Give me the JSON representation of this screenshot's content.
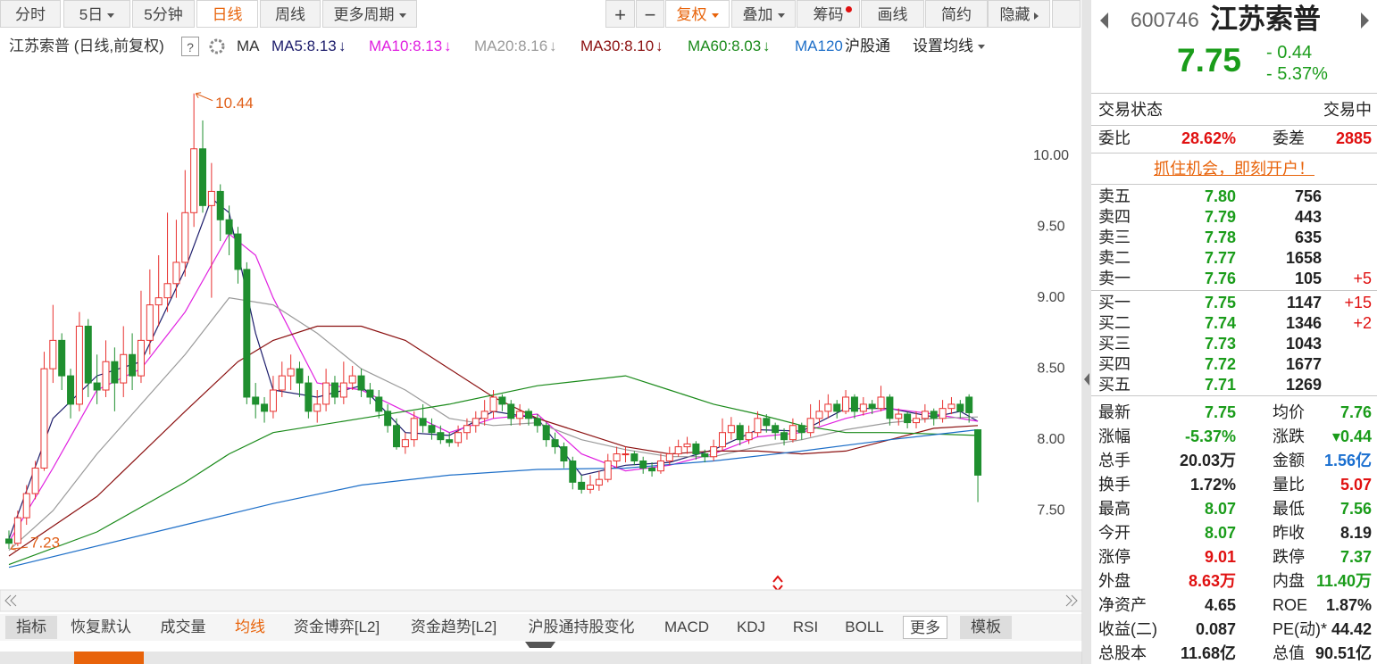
{
  "toolbar": {
    "left": [
      "分时",
      "5日",
      "5分钟",
      "日线",
      "周线",
      "更多周期"
    ],
    "right": [
      "+",
      "−",
      "复权",
      "叠加",
      "筹码",
      "画线",
      "简约",
      "隐藏"
    ]
  },
  "chart_header": {
    "title": "江苏索普 (日线,前复权)",
    "help": "?",
    "ma": "MA",
    "hgt": "沪股通",
    "settings": "设置均线"
  },
  "chart_data": {
    "type": "candlestick",
    "up_color": "#e8312f",
    "down_color": "#1f8f2f",
    "ylim": [
      6.96,
      10.69
    ],
    "yticks": [
      {
        "value": 10,
        "label": "10.00"
      },
      {
        "value": 9.5,
        "label": "9.50"
      },
      {
        "value": 9,
        "label": "9.00"
      },
      {
        "value": 8.5,
        "label": "8.50"
      },
      {
        "value": 8,
        "label": "8.00"
      },
      {
        "value": 7.5,
        "label": "7.50"
      }
    ],
    "ohlc": [
      [
        7.3,
        7.36,
        7.23,
        7.27
      ],
      [
        7.27,
        7.5,
        7.25,
        7.45
      ],
      [
        7.45,
        7.68,
        7.4,
        7.62
      ],
      [
        7.62,
        7.85,
        7.58,
        7.8
      ],
      [
        7.8,
        8.62,
        7.78,
        8.5
      ],
      [
        8.5,
        8.95,
        8.4,
        8.7
      ],
      [
        8.7,
        8.75,
        8.35,
        8.45
      ],
      [
        8.45,
        8.5,
        8.15,
        8.25
      ],
      [
        8.25,
        8.9,
        8.2,
        8.8
      ],
      [
        8.8,
        8.85,
        8.3,
        8.4
      ],
      [
        8.4,
        8.6,
        8.25,
        8.35
      ],
      [
        8.35,
        8.7,
        8.3,
        8.55
      ],
      [
        8.55,
        8.65,
        8.2,
        8.4
      ],
      [
        8.4,
        8.8,
        8.3,
        8.6
      ],
      [
        8.6,
        8.75,
        8.35,
        8.45
      ],
      [
        8.45,
        9.05,
        8.4,
        8.7
      ],
      [
        8.7,
        9.2,
        8.6,
        8.95
      ],
      [
        8.95,
        9.3,
        8.8,
        9.0
      ],
      [
        9.0,
        9.6,
        8.9,
        9.1
      ],
      [
        9.1,
        9.55,
        9.0,
        9.25
      ],
      [
        9.25,
        9.9,
        9.15,
        9.6
      ],
      [
        9.6,
        10.44,
        9.5,
        10.05
      ],
      [
        10.05,
        10.25,
        9.6,
        9.65
      ],
      [
        9.65,
        9.95,
        9.0,
        9.75
      ],
      [
        9.75,
        9.8,
        9.4,
        9.55
      ],
      [
        9.55,
        9.65,
        9.3,
        9.45
      ],
      [
        9.45,
        9.5,
        9.1,
        9.2
      ],
      [
        9.2,
        9.25,
        8.25,
        8.3
      ],
      [
        8.3,
        8.4,
        8.15,
        8.25
      ],
      [
        8.25,
        8.3,
        8.12,
        8.2
      ],
      [
        8.2,
        8.45,
        8.15,
        8.35
      ],
      [
        8.35,
        8.55,
        8.3,
        8.45
      ],
      [
        8.45,
        8.6,
        8.35,
        8.5
      ],
      [
        8.5,
        8.55,
        8.3,
        8.4
      ],
      [
        8.4,
        8.45,
        8.15,
        8.2
      ],
      [
        8.2,
        8.35,
        8.12,
        8.25
      ],
      [
        8.25,
        8.5,
        8.2,
        8.4
      ],
      [
        8.4,
        8.45,
        8.25,
        8.3
      ],
      [
        8.3,
        8.55,
        8.25,
        8.4
      ],
      [
        8.4,
        8.52,
        8.35,
        8.45
      ],
      [
        8.45,
        8.5,
        8.3,
        8.35
      ],
      [
        8.35,
        8.4,
        8.25,
        8.3
      ],
      [
        8.3,
        8.35,
        8.15,
        8.2
      ],
      [
        8.2,
        8.25,
        8.05,
        8.1
      ],
      [
        8.1,
        8.15,
        7.93,
        7.95
      ],
      [
        7.95,
        8.05,
        7.9,
        8.0
      ],
      [
        8.0,
        8.2,
        7.95,
        8.15
      ],
      [
        8.15,
        8.25,
        8.05,
        8.1
      ],
      [
        8.1,
        8.15,
        8.0,
        8.05
      ],
      [
        8.05,
        8.1,
        7.97,
        8.0
      ],
      [
        8.0,
        8.05,
        7.95,
        7.98
      ],
      [
        7.98,
        8.1,
        7.95,
        8.05
      ],
      [
        8.05,
        8.15,
        8.0,
        8.1
      ],
      [
        8.1,
        8.2,
        8.05,
        8.15
      ],
      [
        8.15,
        8.28,
        8.1,
        8.2
      ],
      [
        8.2,
        8.35,
        8.15,
        8.3
      ],
      [
        8.3,
        8.32,
        8.2,
        8.25
      ],
      [
        8.25,
        8.28,
        8.1,
        8.15
      ],
      [
        8.15,
        8.25,
        8.1,
        8.2
      ],
      [
        8.2,
        8.22,
        8.1,
        8.15
      ],
      [
        8.15,
        8.18,
        8.05,
        8.1
      ],
      [
        8.1,
        8.12,
        7.95,
        8.0
      ],
      [
        8.0,
        8.05,
        7.9,
        7.95
      ],
      [
        7.95,
        7.98,
        7.8,
        7.85
      ],
      [
        7.85,
        7.88,
        7.65,
        7.7
      ],
      [
        7.7,
        7.75,
        7.62,
        7.65
      ],
      [
        7.65,
        7.75,
        7.62,
        7.68
      ],
      [
        7.68,
        7.78,
        7.64,
        7.72
      ],
      [
        7.72,
        7.9,
        7.7,
        7.85
      ],
      [
        7.85,
        7.95,
        7.8,
        7.9
      ],
      [
        7.9,
        7.95,
        7.84,
        7.9
      ],
      [
        7.9,
        7.92,
        7.82,
        7.85
      ],
      [
        7.85,
        7.88,
        7.76,
        7.8
      ],
      [
        7.8,
        7.84,
        7.74,
        7.78
      ],
      [
        7.78,
        7.9,
        7.76,
        7.85
      ],
      [
        7.85,
        7.95,
        7.82,
        7.9
      ],
      [
        7.9,
        8.0,
        7.88,
        7.95
      ],
      [
        7.95,
        8.02,
        7.9,
        7.97
      ],
      [
        7.97,
        7.99,
        7.86,
        7.9
      ],
      [
        7.9,
        7.93,
        7.84,
        7.88
      ],
      [
        7.88,
        8.0,
        7.85,
        7.95
      ],
      [
        7.95,
        8.15,
        7.92,
        8.05
      ],
      [
        8.05,
        8.16,
        8.0,
        8.1
      ],
      [
        8.1,
        8.12,
        7.96,
        8.0
      ],
      [
        8.0,
        8.1,
        7.97,
        8.05
      ],
      [
        8.05,
        8.2,
        8.02,
        8.15
      ],
      [
        8.15,
        8.18,
        8.05,
        8.1
      ],
      [
        8.1,
        8.12,
        8.0,
        8.05
      ],
      [
        8.05,
        8.08,
        7.96,
        8.0
      ],
      [
        8.0,
        8.15,
        7.98,
        8.1
      ],
      [
        8.1,
        8.12,
        8.0,
        8.05
      ],
      [
        8.05,
        8.25,
        8.02,
        8.15
      ],
      [
        8.15,
        8.28,
        8.1,
        8.2
      ],
      [
        8.2,
        8.32,
        8.15,
        8.25
      ],
      [
        8.25,
        8.28,
        8.15,
        8.2
      ],
      [
        8.2,
        8.35,
        8.18,
        8.3
      ],
      [
        8.3,
        8.32,
        8.15,
        8.2
      ],
      [
        8.2,
        8.3,
        8.17,
        8.25
      ],
      [
        8.25,
        8.28,
        8.18,
        8.22
      ],
      [
        8.22,
        8.38,
        8.2,
        8.3
      ],
      [
        8.3,
        8.32,
        8.1,
        8.15
      ],
      [
        8.15,
        8.22,
        8.1,
        8.18
      ],
      [
        8.18,
        8.2,
        8.08,
        8.12
      ],
      [
        8.12,
        8.2,
        8.08,
        8.15
      ],
      [
        8.15,
        8.25,
        8.12,
        8.2
      ],
      [
        8.2,
        8.22,
        8.1,
        8.15
      ],
      [
        8.15,
        8.28,
        8.12,
        8.22
      ],
      [
        8.22,
        8.3,
        8.18,
        8.25
      ],
      [
        8.25,
        8.28,
        8.15,
        8.2
      ],
      [
        8.3,
        8.32,
        8.12,
        8.19
      ],
      [
        8.07,
        8.07,
        7.56,
        7.75
      ]
    ],
    "series": [
      {
        "name": "MA5:8.13",
        "trend": "↓",
        "color": "#1c1c6b",
        "x": [
          0,
          5,
          10,
          15,
          20,
          23,
          25,
          28,
          30,
          35,
          40,
          45,
          50,
          55,
          60,
          65,
          70,
          75,
          80,
          85,
          90,
          95,
          100,
          105,
          108,
          110
        ],
        "values": [
          7.3,
          8.15,
          8.45,
          8.55,
          9.2,
          9.7,
          9.6,
          8.75,
          8.35,
          8.3,
          8.38,
          8.05,
          8.03,
          8.2,
          8.15,
          7.75,
          7.82,
          7.84,
          7.93,
          8.07,
          8.06,
          8.22,
          8.22,
          8.16,
          8.2,
          8.13
        ]
      },
      {
        "name": "MA10:8.13",
        "trend": "↓",
        "color": "#e020e0",
        "x": [
          0,
          5,
          10,
          15,
          20,
          25,
          28,
          30,
          35,
          40,
          45,
          50,
          55,
          60,
          65,
          70,
          75,
          80,
          85,
          90,
          95,
          100,
          105,
          110
        ],
        "values": [
          7.28,
          7.8,
          8.35,
          8.5,
          8.9,
          9.45,
          9.3,
          9.0,
          8.4,
          8.35,
          8.2,
          8.05,
          8.15,
          8.18,
          7.9,
          7.78,
          7.82,
          7.9,
          8.02,
          8.05,
          8.15,
          8.22,
          8.18,
          8.13
        ]
      },
      {
        "name": "MA20:8.16",
        "trend": "↓",
        "color": "#9a9a9a",
        "x": [
          0,
          5,
          10,
          15,
          20,
          25,
          30,
          35,
          40,
          45,
          50,
          55,
          60,
          65,
          70,
          75,
          80,
          85,
          90,
          95,
          100,
          105,
          110
        ],
        "values": [
          7.22,
          7.5,
          7.9,
          8.25,
          8.6,
          9.0,
          8.95,
          8.75,
          8.5,
          8.35,
          8.15,
          8.1,
          8.12,
          8.0,
          7.93,
          7.88,
          7.88,
          7.95,
          8.0,
          8.07,
          8.12,
          8.15,
          8.16
        ]
      },
      {
        "name": "MA30:8.10",
        "trend": "↓",
        "color": "#8b1010",
        "x": [
          0,
          10,
          20,
          26,
          30,
          35,
          40,
          45,
          50,
          55,
          60,
          65,
          70,
          75,
          80,
          85,
          90,
          95,
          100,
          105,
          110
        ],
        "values": [
          7.18,
          7.6,
          8.2,
          8.55,
          8.7,
          8.8,
          8.8,
          8.7,
          8.5,
          8.3,
          8.15,
          8.05,
          7.95,
          7.9,
          7.92,
          7.92,
          7.9,
          7.92,
          8.0,
          8.08,
          8.1
        ]
      },
      {
        "name": "MA60:8.03",
        "trend": "↓",
        "color": "#1a8a1a",
        "x": [
          0,
          10,
          20,
          25,
          30,
          40,
          50,
          60,
          70,
          75,
          80,
          85,
          90,
          95,
          100,
          110
        ],
        "values": [
          7.12,
          7.35,
          7.7,
          7.9,
          8.05,
          8.15,
          8.25,
          8.38,
          8.45,
          8.35,
          8.25,
          8.18,
          8.1,
          8.05,
          8.05,
          8.03
        ]
      },
      {
        "name": "MA120",
        "color": "#1e6fc8",
        "x": [
          0,
          20,
          30,
          40,
          50,
          60,
          70,
          80,
          90,
          100,
          110
        ],
        "values": [
          7.1,
          7.4,
          7.55,
          7.68,
          7.75,
          7.79,
          7.8,
          7.85,
          7.92,
          8.0,
          8.07
        ]
      }
    ],
    "annotations": [
      {
        "index": 21,
        "value": 10.44
      },
      {
        "index": 0,
        "value": 7.23
      }
    ]
  },
  "indicator_tabs": [
    "指标",
    "恢复默认",
    "成交量",
    "均线",
    "资金博弈[L2]",
    "资金趋势[L2]",
    "沪股通持股变化",
    "MACD",
    "KDJ",
    "RSI",
    "BOLL",
    "更多",
    "模板"
  ],
  "quote": {
    "code": "600746",
    "name": "江苏索普",
    "price": "7.75",
    "change": "- 0.44",
    "change_pct": "- 5.37%",
    "status_label": "交易状态",
    "status": "交易中",
    "wb_label": "委比",
    "wb": "28.62%",
    "wc_label": "委差",
    "wc": "2885",
    "promo": "抓住机会，即刻开户！"
  },
  "order_book": {
    "asks": [
      [
        "卖五",
        "7.80",
        "756"
      ],
      [
        "卖四",
        "7.79",
        "443"
      ],
      [
        "卖三",
        "7.78",
        "635"
      ],
      [
        "卖二",
        "7.77",
        "1658"
      ],
      [
        "卖一",
        "7.76",
        "105",
        "+5"
      ]
    ],
    "bids": [
      [
        "买一",
        "7.75",
        "1147",
        "+15"
      ],
      [
        "买二",
        "7.74",
        "1346",
        "+2"
      ],
      [
        "买三",
        "7.73",
        "1043"
      ],
      [
        "买四",
        "7.72",
        "1677"
      ],
      [
        "买五",
        "7.71",
        "1269"
      ]
    ]
  },
  "stats": [
    [
      "最新",
      "7.75",
      "均价",
      "7.76"
    ],
    [
      "涨幅",
      "-5.37%",
      "涨跌",
      "▾0.44"
    ],
    [
      "总手",
      "20.03万",
      "金额",
      "1.56亿"
    ],
    [
      "换手",
      "1.72%",
      "量比",
      "5.07"
    ],
    [
      "最高",
      "8.07",
      "最低",
      "7.56"
    ],
    [
      "今开",
      "8.07",
      "昨收",
      "8.19"
    ],
    [
      "涨停",
      "9.01",
      "跌停",
      "7.37"
    ],
    [
      "外盘",
      "8.63万",
      "内盘",
      "11.40万"
    ],
    [
      "净资产",
      "4.65",
      "ROE",
      "1.87%"
    ],
    [
      "收益(二)",
      "0.087",
      "PE(动)*",
      "44.42"
    ],
    [
      "总股本",
      "11.68亿",
      "总值",
      "90.51亿"
    ]
  ]
}
